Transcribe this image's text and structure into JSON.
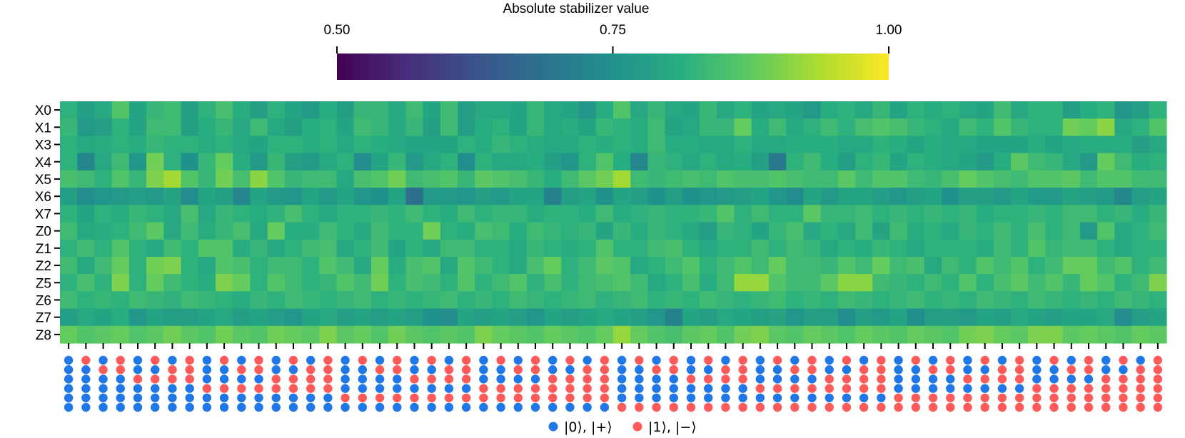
{
  "chart_data": {
    "type": "heatmap",
    "colorbar": {
      "title": "Absolute stabilizer value",
      "range": [
        0.5,
        1.0
      ],
      "ticks": [
        "0.50",
        "0.75",
        "1.00"
      ],
      "colormap": "viridis"
    },
    "rows": [
      "X0",
      "X1",
      "X3",
      "X4",
      "X5",
      "X6",
      "X7",
      "Z0",
      "Z1",
      "Z2",
      "Z5",
      "Z6",
      "Z7",
      "Z8"
    ],
    "n_columns": 64,
    "values": [
      [
        0.82,
        0.78,
        0.8,
        0.86,
        0.79,
        0.83,
        0.84,
        0.78,
        0.82,
        0.85,
        0.81,
        0.78,
        0.82,
        0.79,
        0.77,
        0.81,
        0.78,
        0.83,
        0.83,
        0.8,
        0.84,
        0.79,
        0.84,
        0.78,
        0.8,
        0.8,
        0.79,
        0.83,
        0.8,
        0.79,
        0.76,
        0.81,
        0.86,
        0.8,
        0.83,
        0.8,
        0.79,
        0.83,
        0.8,
        0.82,
        0.79,
        0.8,
        0.79,
        0.77,
        0.81,
        0.82,
        0.8,
        0.83,
        0.79,
        0.82,
        0.81,
        0.82,
        0.8,
        0.79,
        0.84,
        0.8,
        0.82,
        0.82,
        0.78,
        0.81,
        0.82,
        0.76,
        0.78,
        0.82
      ],
      [
        0.83,
        0.77,
        0.78,
        0.82,
        0.79,
        0.84,
        0.84,
        0.78,
        0.81,
        0.83,
        0.8,
        0.84,
        0.8,
        0.78,
        0.81,
        0.82,
        0.79,
        0.84,
        0.83,
        0.8,
        0.83,
        0.78,
        0.84,
        0.78,
        0.81,
        0.82,
        0.79,
        0.83,
        0.8,
        0.81,
        0.79,
        0.83,
        0.82,
        0.81,
        0.84,
        0.79,
        0.8,
        0.83,
        0.83,
        0.88,
        0.81,
        0.84,
        0.8,
        0.82,
        0.84,
        0.82,
        0.85,
        0.86,
        0.85,
        0.83,
        0.82,
        0.8,
        0.84,
        0.82,
        0.86,
        0.83,
        0.82,
        0.82,
        0.89,
        0.88,
        0.91,
        0.8,
        0.82,
        0.86
      ],
      [
        0.82,
        0.8,
        0.81,
        0.82,
        0.81,
        0.83,
        0.82,
        0.82,
        0.81,
        0.82,
        0.8,
        0.79,
        0.82,
        0.82,
        0.81,
        0.82,
        0.8,
        0.82,
        0.81,
        0.8,
        0.79,
        0.79,
        0.79,
        0.82,
        0.81,
        0.83,
        0.82,
        0.81,
        0.8,
        0.8,
        0.82,
        0.81,
        0.82,
        0.81,
        0.84,
        0.81,
        0.81,
        0.8,
        0.8,
        0.82,
        0.8,
        0.8,
        0.81,
        0.81,
        0.81,
        0.8,
        0.8,
        0.82,
        0.81,
        0.79,
        0.81,
        0.8,
        0.8,
        0.79,
        0.79,
        0.79,
        0.81,
        0.79,
        0.8,
        0.81,
        0.81,
        0.81,
        0.78,
        0.8
      ],
      [
        0.82,
        0.73,
        0.8,
        0.84,
        0.76,
        0.89,
        0.82,
        0.75,
        0.83,
        0.88,
        0.81,
        0.77,
        0.83,
        0.78,
        0.77,
        0.8,
        0.82,
        0.74,
        0.79,
        0.83,
        0.77,
        0.8,
        0.82,
        0.74,
        0.82,
        0.8,
        0.8,
        0.81,
        0.78,
        0.76,
        0.82,
        0.86,
        0.81,
        0.73,
        0.83,
        0.82,
        0.8,
        0.82,
        0.8,
        0.81,
        0.78,
        0.7,
        0.82,
        0.84,
        0.81,
        0.78,
        0.82,
        0.83,
        0.79,
        0.82,
        0.81,
        0.8,
        0.79,
        0.77,
        0.81,
        0.87,
        0.84,
        0.83,
        0.8,
        0.77,
        0.88,
        0.84,
        0.81,
        0.82
      ],
      [
        0.85,
        0.84,
        0.82,
        0.86,
        0.83,
        0.9,
        0.93,
        0.86,
        0.83,
        0.89,
        0.85,
        0.91,
        0.86,
        0.83,
        0.84,
        0.84,
        0.8,
        0.85,
        0.86,
        0.89,
        0.84,
        0.85,
        0.86,
        0.83,
        0.87,
        0.86,
        0.85,
        0.83,
        0.81,
        0.84,
        0.87,
        0.89,
        0.93,
        0.84,
        0.83,
        0.84,
        0.85,
        0.84,
        0.86,
        0.85,
        0.85,
        0.86,
        0.85,
        0.84,
        0.84,
        0.87,
        0.84,
        0.86,
        0.86,
        0.84,
        0.83,
        0.85,
        0.88,
        0.86,
        0.85,
        0.84,
        0.86,
        0.86,
        0.87,
        0.84,
        0.86,
        0.86,
        0.84,
        0.84
      ],
      [
        0.78,
        0.74,
        0.76,
        0.77,
        0.78,
        0.77,
        0.79,
        0.74,
        0.79,
        0.78,
        0.73,
        0.79,
        0.77,
        0.76,
        0.79,
        0.77,
        0.79,
        0.76,
        0.75,
        0.79,
        0.68,
        0.77,
        0.77,
        0.76,
        0.78,
        0.77,
        0.79,
        0.79,
        0.72,
        0.78,
        0.79,
        0.75,
        0.79,
        0.78,
        0.75,
        0.78,
        0.75,
        0.76,
        0.77,
        0.78,
        0.79,
        0.76,
        0.74,
        0.79,
        0.77,
        0.79,
        0.79,
        0.78,
        0.76,
        0.78,
        0.79,
        0.75,
        0.78,
        0.78,
        0.77,
        0.79,
        0.77,
        0.77,
        0.79,
        0.78,
        0.77,
        0.73,
        0.78,
        0.79
      ],
      [
        0.82,
        0.79,
        0.82,
        0.81,
        0.83,
        0.82,
        0.8,
        0.85,
        0.8,
        0.83,
        0.82,
        0.81,
        0.82,
        0.85,
        0.82,
        0.8,
        0.82,
        0.82,
        0.83,
        0.82,
        0.84,
        0.82,
        0.81,
        0.84,
        0.82,
        0.83,
        0.83,
        0.81,
        0.82,
        0.82,
        0.81,
        0.84,
        0.81,
        0.82,
        0.83,
        0.82,
        0.82,
        0.83,
        0.86,
        0.82,
        0.84,
        0.82,
        0.82,
        0.87,
        0.83,
        0.83,
        0.84,
        0.82,
        0.83,
        0.82,
        0.83,
        0.82,
        0.83,
        0.81,
        0.82,
        0.82,
        0.83,
        0.82,
        0.84,
        0.84,
        0.82,
        0.83,
        0.81,
        0.83
      ],
      [
        0.84,
        0.8,
        0.81,
        0.82,
        0.84,
        0.87,
        0.8,
        0.84,
        0.81,
        0.83,
        0.85,
        0.8,
        0.88,
        0.81,
        0.81,
        0.84,
        0.82,
        0.8,
        0.84,
        0.82,
        0.82,
        0.89,
        0.82,
        0.81,
        0.85,
        0.84,
        0.81,
        0.84,
        0.83,
        0.82,
        0.83,
        0.79,
        0.83,
        0.81,
        0.83,
        0.82,
        0.8,
        0.78,
        0.83,
        0.82,
        0.79,
        0.83,
        0.85,
        0.8,
        0.82,
        0.8,
        0.84,
        0.79,
        0.84,
        0.81,
        0.82,
        0.8,
        0.83,
        0.82,
        0.84,
        0.82,
        0.85,
        0.82,
        0.84,
        0.77,
        0.86,
        0.8,
        0.82,
        0.84
      ],
      [
        0.82,
        0.84,
        0.82,
        0.86,
        0.82,
        0.8,
        0.84,
        0.82,
        0.86,
        0.86,
        0.81,
        0.83,
        0.8,
        0.82,
        0.84,
        0.85,
        0.8,
        0.82,
        0.84,
        0.79,
        0.82,
        0.8,
        0.84,
        0.84,
        0.82,
        0.82,
        0.8,
        0.83,
        0.82,
        0.81,
        0.82,
        0.86,
        0.82,
        0.82,
        0.84,
        0.85,
        0.82,
        0.8,
        0.82,
        0.82,
        0.84,
        0.82,
        0.84,
        0.83,
        0.8,
        0.82,
        0.81,
        0.83,
        0.82,
        0.8,
        0.82,
        0.82,
        0.82,
        0.81,
        0.84,
        0.82,
        0.86,
        0.83,
        0.84,
        0.84,
        0.82,
        0.8,
        0.82,
        0.82
      ],
      [
        0.84,
        0.8,
        0.84,
        0.88,
        0.82,
        0.89,
        0.9,
        0.82,
        0.8,
        0.86,
        0.85,
        0.82,
        0.84,
        0.84,
        0.82,
        0.86,
        0.84,
        0.8,
        0.88,
        0.81,
        0.85,
        0.86,
        0.8,
        0.86,
        0.84,
        0.82,
        0.8,
        0.85,
        0.88,
        0.82,
        0.84,
        0.87,
        0.86,
        0.8,
        0.82,
        0.84,
        0.86,
        0.82,
        0.84,
        0.86,
        0.84,
        0.88,
        0.84,
        0.84,
        0.83,
        0.86,
        0.84,
        0.88,
        0.84,
        0.85,
        0.8,
        0.84,
        0.82,
        0.86,
        0.84,
        0.86,
        0.82,
        0.84,
        0.88,
        0.88,
        0.84,
        0.86,
        0.82,
        0.84
      ],
      [
        0.82,
        0.85,
        0.82,
        0.9,
        0.82,
        0.88,
        0.84,
        0.82,
        0.81,
        0.9,
        0.88,
        0.82,
        0.86,
        0.84,
        0.82,
        0.83,
        0.86,
        0.84,
        0.89,
        0.82,
        0.85,
        0.84,
        0.82,
        0.86,
        0.82,
        0.84,
        0.86,
        0.82,
        0.85,
        0.82,
        0.84,
        0.85,
        0.86,
        0.84,
        0.8,
        0.82,
        0.85,
        0.81,
        0.84,
        0.92,
        0.92,
        0.86,
        0.84,
        0.84,
        0.87,
        0.91,
        0.91,
        0.84,
        0.83,
        0.82,
        0.84,
        0.82,
        0.86,
        0.82,
        0.85,
        0.87,
        0.84,
        0.86,
        0.83,
        0.88,
        0.86,
        0.82,
        0.84,
        0.9
      ],
      [
        0.84,
        0.82,
        0.83,
        0.82,
        0.84,
        0.83,
        0.82,
        0.84,
        0.83,
        0.82,
        0.81,
        0.83,
        0.82,
        0.84,
        0.83,
        0.82,
        0.83,
        0.84,
        0.82,
        0.83,
        0.82,
        0.83,
        0.84,
        0.82,
        0.83,
        0.82,
        0.84,
        0.83,
        0.82,
        0.83,
        0.84,
        0.82,
        0.83,
        0.84,
        0.82,
        0.83,
        0.82,
        0.84,
        0.83,
        0.82,
        0.83,
        0.84,
        0.82,
        0.83,
        0.82,
        0.84,
        0.83,
        0.82,
        0.83,
        0.84,
        0.82,
        0.83,
        0.82,
        0.84,
        0.83,
        0.82,
        0.84,
        0.83,
        0.82,
        0.83,
        0.82,
        0.84,
        0.83,
        0.82
      ],
      [
        0.78,
        0.8,
        0.79,
        0.81,
        0.76,
        0.79,
        0.78,
        0.78,
        0.79,
        0.8,
        0.78,
        0.79,
        0.78,
        0.76,
        0.79,
        0.8,
        0.78,
        0.79,
        0.78,
        0.79,
        0.78,
        0.75,
        0.74,
        0.79,
        0.78,
        0.79,
        0.78,
        0.76,
        0.79,
        0.78,
        0.79,
        0.8,
        0.79,
        0.78,
        0.76,
        0.72,
        0.79,
        0.78,
        0.8,
        0.79,
        0.78,
        0.79,
        0.76,
        0.78,
        0.78,
        0.74,
        0.78,
        0.77,
        0.79,
        0.74,
        0.78,
        0.78,
        0.77,
        0.79,
        0.78,
        0.8,
        0.79,
        0.78,
        0.79,
        0.79,
        0.8,
        0.74,
        0.78,
        0.79
      ],
      [
        0.88,
        0.86,
        0.87,
        0.88,
        0.86,
        0.87,
        0.89,
        0.87,
        0.86,
        0.89,
        0.87,
        0.86,
        0.89,
        0.88,
        0.87,
        0.9,
        0.87,
        0.88,
        0.86,
        0.89,
        0.87,
        0.86,
        0.87,
        0.86,
        0.9,
        0.88,
        0.87,
        0.86,
        0.88,
        0.87,
        0.86,
        0.88,
        0.92,
        0.88,
        0.86,
        0.85,
        0.87,
        0.88,
        0.86,
        0.89,
        0.9,
        0.87,
        0.86,
        0.88,
        0.87,
        0.86,
        0.88,
        0.87,
        0.86,
        0.88,
        0.87,
        0.86,
        0.89,
        0.9,
        0.88,
        0.87,
        0.9,
        0.9,
        0.87,
        0.88,
        0.87,
        0.86,
        0.88,
        0.87
      ]
    ],
    "state_encoding": {
      "rows": 6,
      "pattern": "binary_column_index_lsb_top",
      "colors": {
        "zero_plus": "#1f77e8",
        "one_minus": "#ff5a5a"
      }
    },
    "legend": [
      {
        "label": "|0⟩, |+⟩",
        "color": "#1f77e8"
      },
      {
        "label": "|1⟩, |−⟩",
        "color": "#ff5a5a"
      }
    ],
    "legend_placement": "bottom-center"
  }
}
